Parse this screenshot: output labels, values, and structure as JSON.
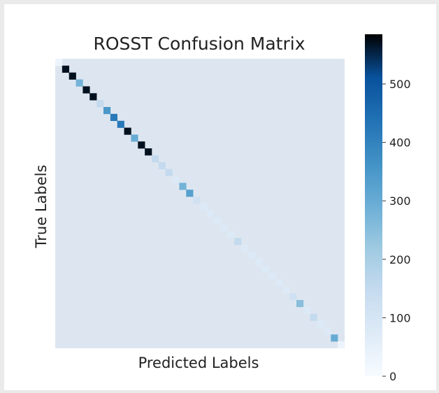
{
  "chart_data": {
    "type": "heatmap",
    "title": "ROSST Confusion Matrix",
    "xlabel": "Predicted Labels",
    "ylabel": "True Labels",
    "x_tick_labels": [],
    "y_tick_labels": [],
    "n_classes": 42,
    "off_diagonal_value": 0,
    "diagonal_values": [
      30,
      570,
      570,
      280,
      570,
      570,
      150,
      350,
      420,
      420,
      570,
      300,
      570,
      570,
      150,
      150,
      150,
      80,
      280,
      330,
      120,
      80,
      80,
      80,
      80,
      80,
      150,
      80,
      80,
      80,
      80,
      80,
      80,
      80,
      120,
      250,
      80,
      150,
      80,
      80,
      300,
      30
    ],
    "colorbar": {
      "colormap": "Blues",
      "vmin": 0,
      "vmax": 585,
      "ticks": [
        0,
        100,
        200,
        300,
        400,
        500
      ],
      "tick_labels": [
        "0",
        "100",
        "200",
        "300",
        "400",
        "500"
      ]
    }
  }
}
